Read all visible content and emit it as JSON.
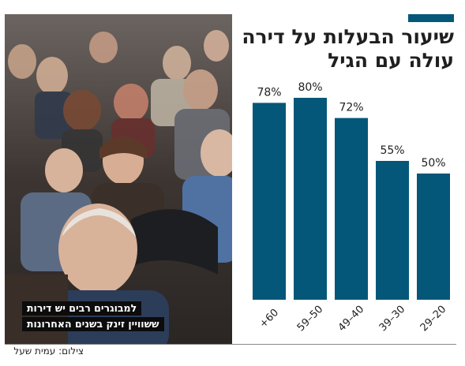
{
  "title": [
    "שיעור הבעלות על דירה",
    "עולה עם הגיל"
  ],
  "photo": {
    "caption": [
      "למבוגרים רבים יש דירות",
      "ששוויין זינק בשנים האחרונות"
    ],
    "credit": "צילום: עמית שעל"
  },
  "colors": {
    "bar": "#045778",
    "accent": "#045778",
    "text": "#1f1f1f"
  },
  "chart_data": {
    "type": "bar",
    "title": "שיעור הבעלות על דירה עולה עם הגיל",
    "categories": [
      "+60",
      "59–50",
      "49–40",
      "39–30",
      "29–20"
    ],
    "values": [
      78,
      80,
      72,
      55,
      50
    ],
    "value_labels": [
      "78%",
      "80%",
      "72%",
      "55%",
      "50%"
    ],
    "unit": "%",
    "ylim": [
      0,
      100
    ],
    "grid": false,
    "xlabel": "",
    "ylabel": ""
  }
}
